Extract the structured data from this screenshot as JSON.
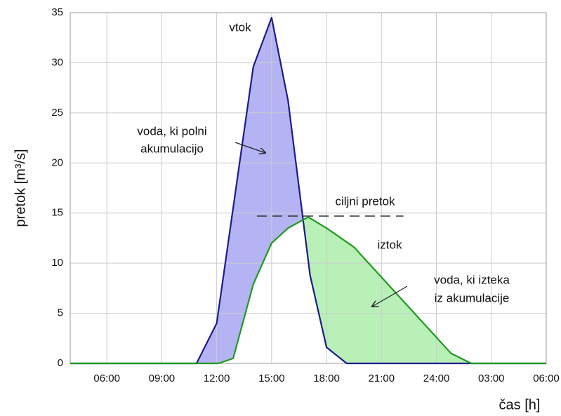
{
  "chart_data": {
    "type": "area-line",
    "y_label": "pretok [m³/s]",
    "x_label": "čas [h]",
    "xlim": [
      4,
      30
    ],
    "ylim": [
      0,
      35
    ],
    "xticks": [
      {
        "value": 6,
        "label": "06:00"
      },
      {
        "value": 9,
        "label": "09:00"
      },
      {
        "value": 12,
        "label": "12:00"
      },
      {
        "value": 15,
        "label": "15:00"
      },
      {
        "value": 18,
        "label": "18:00"
      },
      {
        "value": 21,
        "label": "21:00"
      },
      {
        "value": 24,
        "label": "24:00"
      },
      {
        "value": 27,
        "label": "03:00"
      },
      {
        "value": 30,
        "label": "06:00"
      }
    ],
    "yticks": [
      0,
      5,
      10,
      15,
      20,
      25,
      30,
      35
    ],
    "grid": true,
    "series": [
      {
        "name": "vtok",
        "color": "#1c1c8a",
        "fill": "#b4b4f4",
        "x": [
          4,
          10.9,
          12,
          14,
          15,
          15.9,
          17.1,
          18,
          19.1,
          30
        ],
        "values": [
          0,
          0,
          4,
          29.6,
          34.5,
          26.2,
          8.8,
          1.6,
          0,
          0
        ]
      },
      {
        "name": "iztok",
        "color": "#1e9a1e",
        "fill": "#b8f0b8",
        "x": [
          4,
          12.1,
          12.9,
          14,
          15,
          15.9,
          17,
          18,
          19.5,
          24.8,
          25.9,
          30
        ],
        "values": [
          0,
          0,
          0.5,
          7.9,
          12,
          13.5,
          14.6,
          13.5,
          11.6,
          1,
          0,
          0
        ]
      }
    ],
    "target": {
      "label": "ciljni pretok",
      "value": 14.7,
      "x": [
        14.2,
        22.2
      ]
    },
    "annotations": [
      "voda, ki polni",
      "akumulacijo",
      "voda, ki izteka",
      "iz akumulacije"
    ]
  }
}
